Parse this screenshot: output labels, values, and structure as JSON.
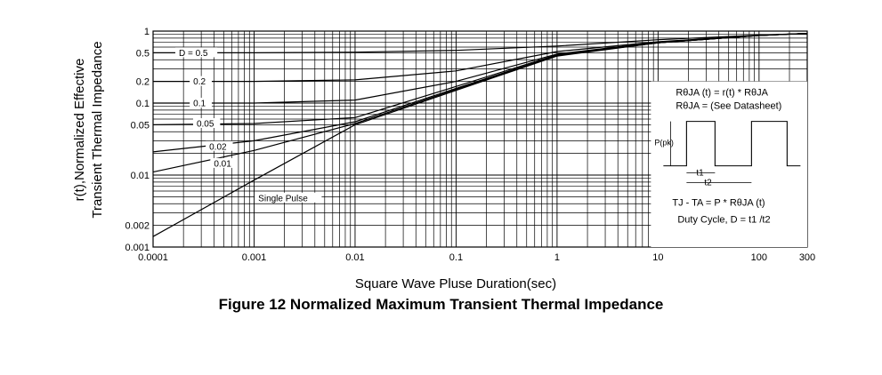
{
  "chart_data": {
    "type": "line",
    "xscale": "log",
    "yscale": "log",
    "xlim": [
      0.0001,
      300
    ],
    "ylim": [
      0.001,
      1
    ],
    "grid": true,
    "xlabel": "Square Wave Pluse Duration(sec)",
    "ylabel_line1": "r(t),Normalized Effective",
    "ylabel_line2": "Transient Thermal Impedance",
    "x_ticks": [
      {
        "value": 0.0001,
        "label": "0.0001"
      },
      {
        "value": 0.001,
        "label": "0.001"
      },
      {
        "value": 0.01,
        "label": "0.01"
      },
      {
        "value": 0.1,
        "label": "0.1"
      },
      {
        "value": 1,
        "label": "1"
      },
      {
        "value": 10,
        "label": "10"
      },
      {
        "value": 100,
        "label": "100"
      },
      {
        "value": 300,
        "label": "300"
      }
    ],
    "y_ticks": [
      {
        "value": 1,
        "label": "1"
      },
      {
        "value": 0.5,
        "label": "0.5"
      },
      {
        "value": 0.2,
        "label": "0.2"
      },
      {
        "value": 0.1,
        "label": "0.1"
      },
      {
        "value": 0.05,
        "label": "0.05"
      },
      {
        "value": 0.01,
        "label": "0.01"
      },
      {
        "value": 0.002,
        "label": "0.002"
      },
      {
        "value": 0.001,
        "label": "0.001"
      }
    ],
    "series": [
      {
        "name": "D = 0.5",
        "points": [
          [
            0.0001,
            0.5
          ],
          [
            0.001,
            0.5
          ],
          [
            0.01,
            0.51
          ],
          [
            0.1,
            0.54
          ],
          [
            1,
            0.62
          ],
          [
            10,
            0.76
          ],
          [
            100,
            0.88
          ],
          [
            300,
            0.93
          ]
        ]
      },
      {
        "name": "0.2",
        "points": [
          [
            0.0001,
            0.2
          ],
          [
            0.001,
            0.2
          ],
          [
            0.01,
            0.21
          ],
          [
            0.1,
            0.28
          ],
          [
            1,
            0.52
          ],
          [
            10,
            0.71
          ],
          [
            100,
            0.87
          ],
          [
            300,
            0.93
          ]
        ]
      },
      {
        "name": "0.1",
        "points": [
          [
            0.0001,
            0.1
          ],
          [
            0.001,
            0.1
          ],
          [
            0.01,
            0.11
          ],
          [
            0.1,
            0.2
          ],
          [
            1,
            0.48
          ],
          [
            10,
            0.7
          ],
          [
            100,
            0.87
          ],
          [
            300,
            0.93
          ]
        ]
      },
      {
        "name": "0.05",
        "points": [
          [
            0.0001,
            0.05
          ],
          [
            0.001,
            0.052
          ],
          [
            0.01,
            0.063
          ],
          [
            0.1,
            0.17
          ],
          [
            1,
            0.47
          ],
          [
            10,
            0.69
          ],
          [
            100,
            0.87
          ],
          [
            300,
            0.93
          ]
        ]
      },
      {
        "name": "0.02",
        "points": [
          [
            0.0001,
            0.021
          ],
          [
            0.001,
            0.03
          ],
          [
            0.01,
            0.055
          ],
          [
            0.1,
            0.16
          ],
          [
            1,
            0.46
          ],
          [
            10,
            0.69
          ],
          [
            100,
            0.87
          ],
          [
            300,
            0.93
          ]
        ]
      },
      {
        "name": "0.01",
        "points": [
          [
            0.0001,
            0.011
          ],
          [
            0.001,
            0.022
          ],
          [
            0.01,
            0.052
          ],
          [
            0.1,
            0.155
          ],
          [
            1,
            0.46
          ],
          [
            10,
            0.69
          ],
          [
            100,
            0.87
          ],
          [
            300,
            0.93
          ]
        ]
      },
      {
        "name": "Single Pulse",
        "points": [
          [
            0.0001,
            0.0014
          ],
          [
            0.001,
            0.0085
          ],
          [
            0.01,
            0.05
          ],
          [
            0.1,
            0.15
          ],
          [
            1,
            0.45
          ],
          [
            10,
            0.69
          ],
          [
            100,
            0.87
          ],
          [
            300,
            0.93
          ]
        ]
      }
    ],
    "inset": {
      "formula1": "RθJA (t) = r(t) * RθJA",
      "formula2": "RθJA = (See Datasheet)",
      "ppk_label": "P(pk)",
      "t1_label": "t1",
      "t2_label": "t2",
      "formula3": "TJ - TA = P * RθJA (t)",
      "duty_cycle": "Duty Cycle, D = t1 /t2"
    }
  },
  "caption": "Figure 12 Normalized Maximum Transient Thermal Impedance",
  "colors": {
    "line": "#000000",
    "grid": "#000000",
    "background": "#ffffff"
  }
}
